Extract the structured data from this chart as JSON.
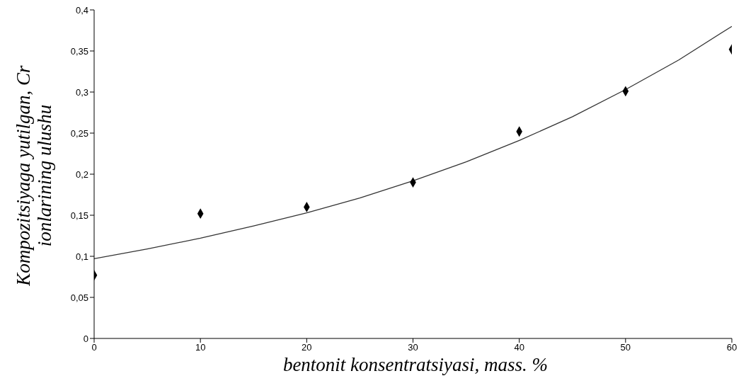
{
  "chart_data": {
    "type": "scatter",
    "xlabel": "bentonit konsentratsiyasi, mass. %",
    "ylabel": "Kompozitsiyaga yutilgan, Cr ionlarining ulushu",
    "series": [
      {
        "marker": "diamond",
        "color": "#000000",
        "x": [
          0,
          10,
          20,
          30,
          40,
          50,
          60
        ],
        "values": [
          0.077,
          0.152,
          0.16,
          0.19,
          0.252,
          0.301,
          0.352
        ]
      },
      {
        "type": "line",
        "marker": "none",
        "color": "#333333",
        "line_style": "solid",
        "x": [
          0,
          5,
          10,
          15,
          20,
          25,
          30,
          35,
          40,
          45,
          50,
          55,
          60
        ],
        "values": [
          0.097,
          0.109,
          0.122,
          0.137,
          0.153,
          0.171,
          0.192,
          0.215,
          0.241,
          0.27,
          0.303,
          0.339,
          0.38
        ]
      }
    ],
    "xlim": [
      0,
      60
    ],
    "xticks": [
      0,
      10,
      20,
      30,
      40,
      50,
      60
    ],
    "ylim": [
      0,
      0.4
    ],
    "yticks": [
      0,
      {
        "value": 0.05,
        "label": "0,05"
      },
      {
        "value": 0.1,
        "label": "0,1"
      },
      {
        "value": 0.15,
        "label": "0,15"
      },
      {
        "value": 0.2,
        "label": "0,2"
      },
      {
        "value": 0.25,
        "label": "0,25"
      },
      {
        "value": 0.3,
        "label": "0,3"
      },
      {
        "value": 0.35,
        "label": "0,35"
      },
      {
        "value": 0.4,
        "label": "0,4"
      }
    ]
  }
}
